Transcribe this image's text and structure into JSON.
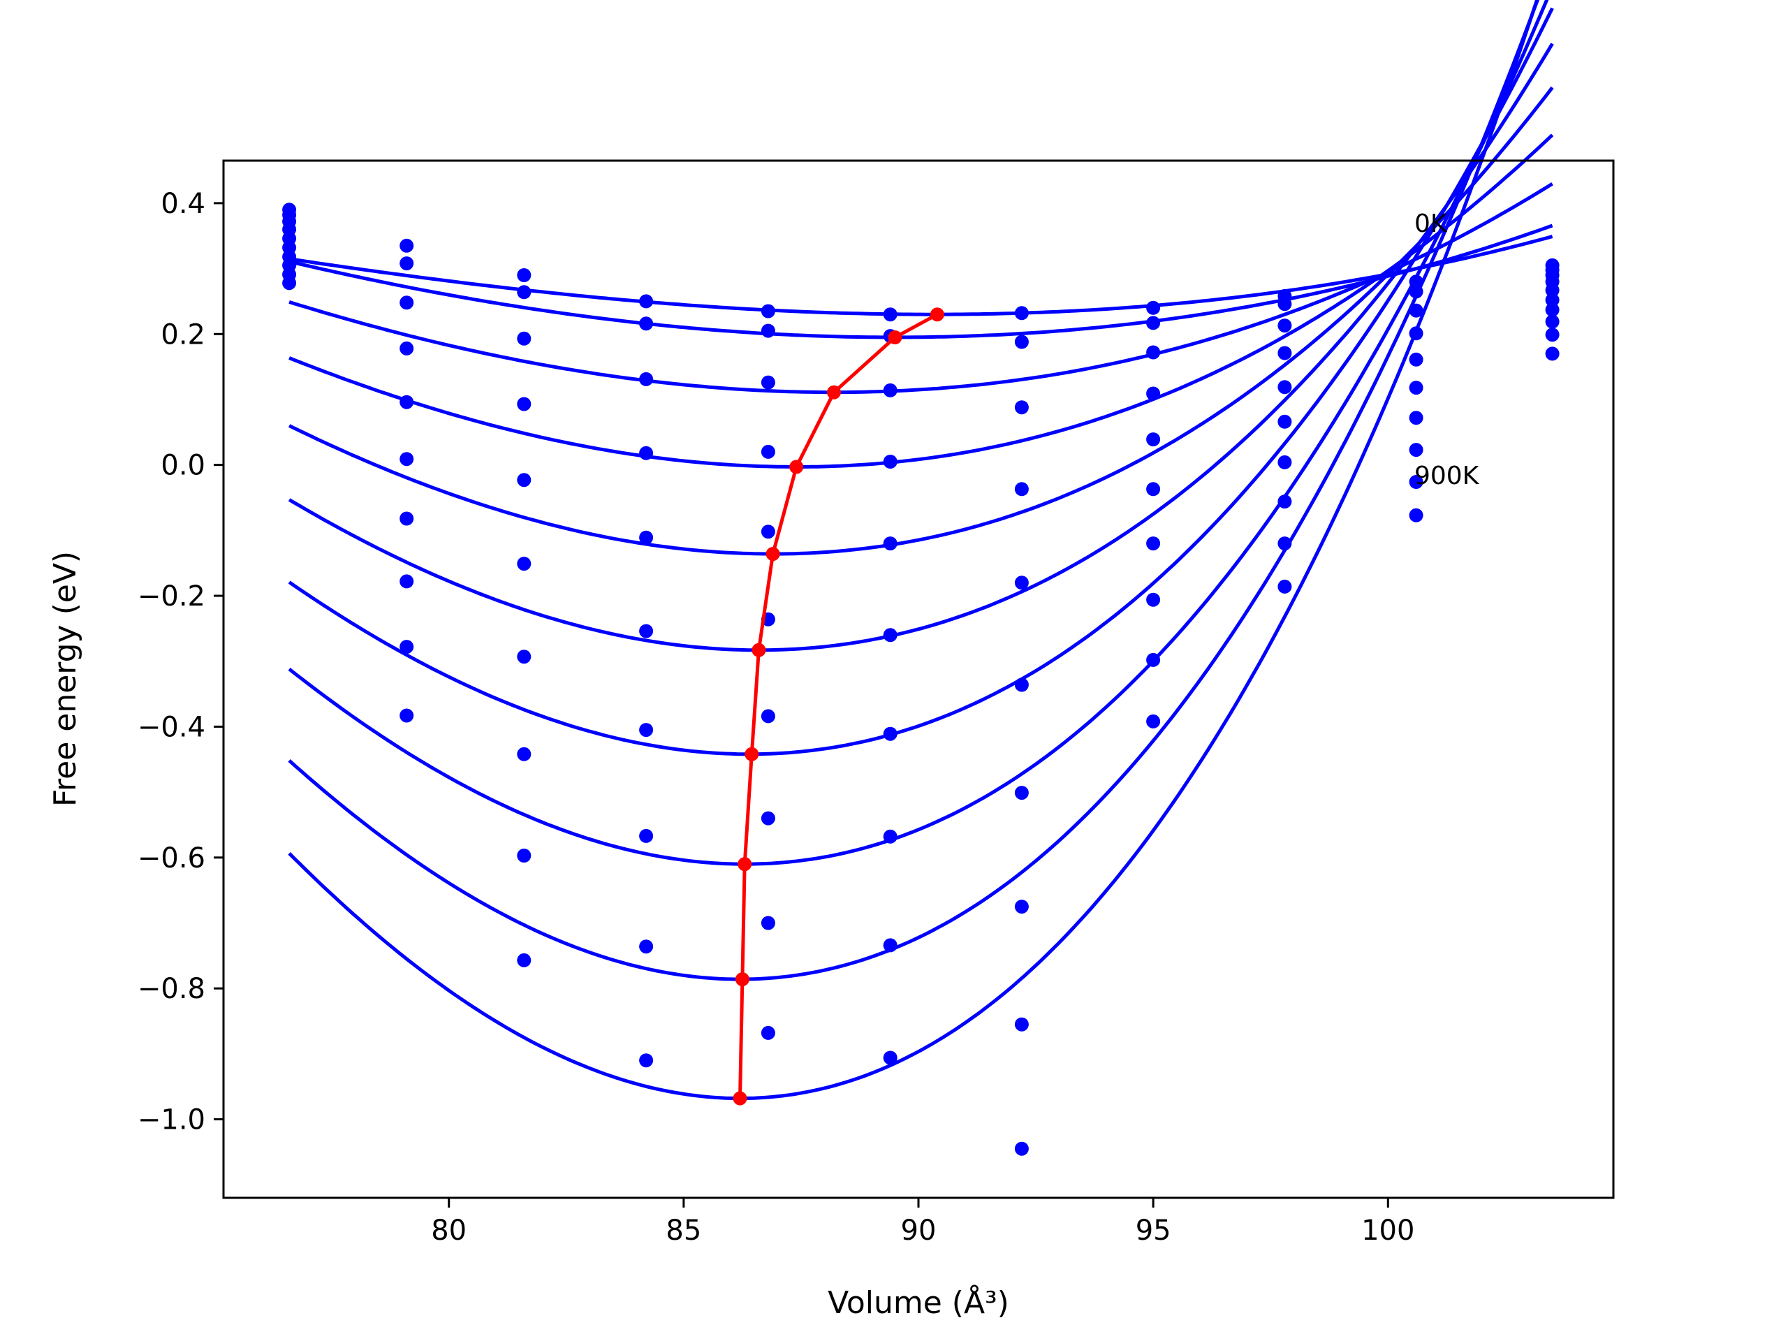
{
  "chart_data": {
    "type": "line",
    "title": "",
    "xlabel": "Volume (Å³)",
    "ylabel": "Free energy (eV)",
    "xlim": [
      75.2,
      104.8
    ],
    "ylim": [
      -1.12,
      0.465
    ],
    "xticks": [
      80,
      85,
      90,
      95,
      100
    ],
    "yticks": [
      0.4,
      0.2,
      0.0,
      -0.2,
      -0.4,
      -0.6,
      -0.8,
      -1.0
    ],
    "xtick_labels": [
      "80",
      "85",
      "90",
      "95",
      "100"
    ],
    "ytick_labels": [
      "0.4",
      "0.2",
      "0.0",
      "−0.2",
      "−0.4",
      "−0.6",
      "−0.8",
      "−1.0"
    ],
    "grid": false,
    "annotations": [
      {
        "text": "0K",
        "x": 100.6,
        "y": 0.36
      },
      {
        "text": "900K",
        "x": 100.6,
        "y": -0.025
      }
    ],
    "volumes": [
      76.6,
      79.1,
      81.6,
      84.2,
      86.8,
      89.4,
      92.2,
      95.0,
      97.8,
      100.6,
      103.5
    ],
    "series": [
      {
        "values": [
          0.39,
          0.335,
          0.29,
          0.25,
          0.235,
          0.23,
          0.232,
          0.24,
          0.258,
          0.28,
          0.305
        ]
      },
      {
        "values": [
          0.382,
          0.308,
          0.264,
          0.216,
          0.205,
          0.197,
          0.188,
          0.217,
          0.246,
          0.265,
          0.298
        ]
      },
      {
        "values": [
          0.372,
          0.248,
          0.193,
          0.131,
          0.126,
          0.114,
          0.088,
          0.172,
          0.213,
          0.236,
          0.29
        ]
      },
      {
        "values": [
          0.36,
          0.178,
          0.093,
          0.018,
          0.02,
          0.005,
          -0.037,
          0.109,
          0.171,
          0.201,
          0.28
        ]
      },
      {
        "values": [
          0.346,
          0.096,
          -0.023,
          -0.111,
          -0.102,
          -0.12,
          -0.18,
          0.039,
          0.119,
          0.161,
          0.267
        ]
      },
      {
        "values": [
          0.332,
          0.009,
          -0.151,
          -0.254,
          -0.236,
          -0.26,
          -0.336,
          -0.037,
          0.066,
          0.118,
          0.252
        ]
      },
      {
        "values": [
          0.318,
          -0.082,
          -0.293,
          -0.405,
          -0.384,
          -0.411,
          -0.501,
          -0.12,
          0.004,
          0.072,
          0.237
        ]
      },
      {
        "values": [
          0.305,
          -0.178,
          -0.442,
          -0.567,
          -0.54,
          -0.568,
          -0.675,
          -0.206,
          -0.056,
          0.023,
          0.219
        ]
      },
      {
        "values": [
          0.291,
          -0.278,
          -0.597,
          -0.736,
          -0.7,
          -0.734,
          -0.855,
          -0.298,
          -0.12,
          -0.026,
          0.199
        ]
      },
      {
        "values": [
          0.278,
          -0.383,
          -0.757,
          -0.91,
          -0.868,
          -0.906,
          -1.045,
          -0.392,
          -0.186,
          -0.077,
          0.17
        ]
      }
    ],
    "fitted_curves": [
      {
        "vmin": 90.3,
        "fmin": 0.23,
        "b": 0.00057,
        "c": 8.6e-06
      },
      {
        "vmin": 89.5,
        "fmin": 0.195,
        "b": 0.00078,
        "c": 6.5e-06
      },
      {
        "vmin": 88.2,
        "fmin": 0.111,
        "b": 0.00117,
        "c": 1.25e-05
      },
      {
        "vmin": 87.4,
        "fmin": -0.003,
        "b": 0.00164,
        "c": 1.97e-05
      },
      {
        "vmin": 86.9,
        "fmin": -0.136,
        "b": 0.00213,
        "c": 2.75e-05
      },
      {
        "vmin": 86.6,
        "fmin": -0.283,
        "b": 0.00265,
        "c": 3.52e-05
      },
      {
        "vmin": 86.4,
        "fmin": -0.442,
        "b": 0.00316,
        "c": 4.32e-05
      },
      {
        "vmin": 86.3,
        "fmin": -0.61,
        "b": 0.00366,
        "c": 5.07e-05
      },
      {
        "vmin": 86.2,
        "fmin": -0.786,
        "b": 0.00419,
        "c": 5.87e-05
      },
      {
        "vmin": 86.2,
        "fmin": -0.968,
        "b": 0.0047,
        "c": 6.64e-05
      }
    ],
    "minima_line": {
      "x": [
        90.4,
        89.5,
        88.2,
        87.4,
        86.9,
        86.6,
        86.45,
        86.3,
        86.25,
        86.2
      ],
      "y": [
        0.23,
        0.195,
        0.111,
        -0.003,
        -0.136,
        -0.283,
        -0.442,
        -0.61,
        -0.786,
        -0.968
      ]
    },
    "colors": {
      "curves": "#0000ff",
      "points": "#0000ff",
      "minima": "#ff0000",
      "axes": "#000000"
    }
  }
}
